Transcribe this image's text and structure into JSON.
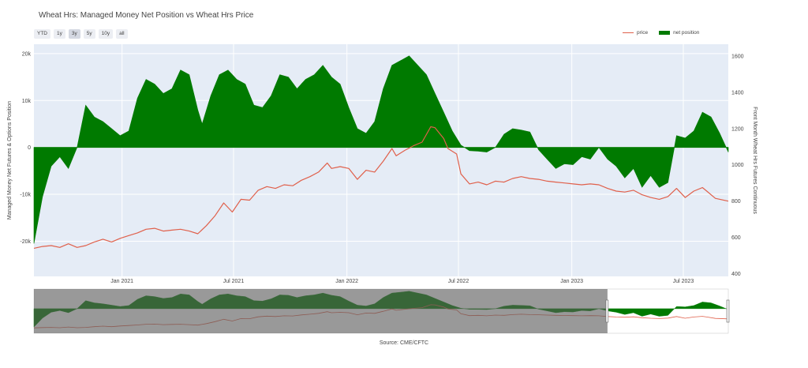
{
  "chart_title": "Wheat Hrs: Managed Money Net Position vs Wheat Hrs Price",
  "range_buttons": [
    {
      "label": "YTD",
      "active": false
    },
    {
      "label": "1y",
      "active": false
    },
    {
      "label": "3y",
      "active": true
    },
    {
      "label": "5y",
      "active": false
    },
    {
      "label": "10y",
      "active": false
    },
    {
      "label": "all",
      "active": false
    }
  ],
  "legend": {
    "price_label": "price",
    "net_label": "net position"
  },
  "source": "Source: CME/CFTC",
  "colors": {
    "price": "#e0604b",
    "net": "#007a00",
    "plot_bg": "#e5ecf6"
  },
  "chart_data": {
    "type": "line+area",
    "title": "Wheat Hrs: Managed Money Net Position vs Wheat Hrs Price",
    "xlabel": "",
    "ylabel_left": "Managed Money Net Futures & Options Position",
    "ylabel_right": "Front Month Wheat Hrs Futures Continuous",
    "xlim": [
      "2020-08-11",
      "2023-09-12"
    ],
    "ylim_left": [
      -27500,
      22000
    ],
    "ylim_right": [
      385,
      1665
    ],
    "x_ticks": [
      {
        "date": "2021-01-01",
        "label": "Jan 2021"
      },
      {
        "date": "2021-07-01",
        "label": "Jul 2021"
      },
      {
        "date": "2022-01-01",
        "label": "Jan 2022"
      },
      {
        "date": "2022-07-01",
        "label": "Jul 2022"
      },
      {
        "date": "2023-01-01",
        "label": "Jan 2023"
      },
      {
        "date": "2023-07-01",
        "label": "Jul 2023"
      }
    ],
    "y_ticks_left": [
      {
        "value": 20000,
        "label": "20k"
      },
      {
        "value": 10000,
        "label": "10k"
      },
      {
        "value": 0,
        "label": "0"
      },
      {
        "value": -10000,
        "label": "-10k"
      },
      {
        "value": -20000,
        "label": "-20k"
      }
    ],
    "y_ticks_right": [
      {
        "value": 1600,
        "label": "1600"
      },
      {
        "value": 1400,
        "label": "1400"
      },
      {
        "value": 1200,
        "label": "1200"
      },
      {
        "value": 1000,
        "label": "1000"
      },
      {
        "value": 800,
        "label": "800"
      },
      {
        "value": 600,
        "label": "600"
      },
      {
        "value": 400,
        "label": "400"
      }
    ],
    "grid": true,
    "legend_position": "top-right",
    "rangeslider": true,
    "series": [
      {
        "name": "net position",
        "type": "area",
        "axis": "left",
        "points": [
          [
            "2020-08-11",
            -20500
          ],
          [
            "2020-08-25",
            -10500
          ],
          [
            "2020-09-08",
            -4000
          ],
          [
            "2020-09-22",
            -2000
          ],
          [
            "2020-10-06",
            -4500
          ],
          [
            "2020-10-20",
            0
          ],
          [
            "2020-11-03",
            9000
          ],
          [
            "2020-11-17",
            6500
          ],
          [
            "2020-12-01",
            5500
          ],
          [
            "2020-12-15",
            4000
          ],
          [
            "2020-12-29",
            2500
          ],
          [
            "2021-01-12",
            3500
          ],
          [
            "2021-01-26",
            10500
          ],
          [
            "2021-02-09",
            14500
          ],
          [
            "2021-02-23",
            13500
          ],
          [
            "2021-03-09",
            11500
          ],
          [
            "2021-03-23",
            12500
          ],
          [
            "2021-04-06",
            16500
          ],
          [
            "2021-04-20",
            15500
          ],
          [
            "2021-05-04",
            8000
          ],
          [
            "2021-05-11",
            5000
          ],
          [
            "2021-05-25",
            11000
          ],
          [
            "2021-06-08",
            15500
          ],
          [
            "2021-06-22",
            16500
          ],
          [
            "2021-07-06",
            14500
          ],
          [
            "2021-07-20",
            13500
          ],
          [
            "2021-08-03",
            9000
          ],
          [
            "2021-08-17",
            8500
          ],
          [
            "2021-08-31",
            11000
          ],
          [
            "2021-09-14",
            15500
          ],
          [
            "2021-09-28",
            15000
          ],
          [
            "2021-10-12",
            12500
          ],
          [
            "2021-10-26",
            14500
          ],
          [
            "2021-11-09",
            15500
          ],
          [
            "2021-11-23",
            17500
          ],
          [
            "2021-12-07",
            15000
          ],
          [
            "2021-12-21",
            13500
          ],
          [
            "2022-01-04",
            8500
          ],
          [
            "2022-01-18",
            4000
          ],
          [
            "2022-02-01",
            3000
          ],
          [
            "2022-02-15",
            5500
          ],
          [
            "2022-03-01",
            12500
          ],
          [
            "2022-03-15",
            17500
          ],
          [
            "2022-03-29",
            18500
          ],
          [
            "2022-04-12",
            19500
          ],
          [
            "2022-04-26",
            17500
          ],
          [
            "2022-05-10",
            15500
          ],
          [
            "2022-05-24",
            11500
          ],
          [
            "2022-06-07",
            7500
          ],
          [
            "2022-06-21",
            3500
          ],
          [
            "2022-07-05",
            500
          ],
          [
            "2022-07-19",
            -700
          ],
          [
            "2022-08-02",
            -800
          ],
          [
            "2022-08-16",
            -1000
          ],
          [
            "2022-08-30",
            0
          ],
          [
            "2022-09-13",
            2800
          ],
          [
            "2022-09-27",
            4000
          ],
          [
            "2022-10-11",
            3700
          ],
          [
            "2022-10-25",
            3300
          ],
          [
            "2022-11-08",
            -500
          ],
          [
            "2022-11-22",
            -2500
          ],
          [
            "2022-12-06",
            -4500
          ],
          [
            "2022-12-20",
            -3500
          ],
          [
            "2023-01-03",
            -3700
          ],
          [
            "2023-01-17",
            -2000
          ],
          [
            "2023-01-31",
            -2500
          ],
          [
            "2023-02-14",
            0
          ],
          [
            "2023-02-28",
            -2500
          ],
          [
            "2023-03-14",
            -4000
          ],
          [
            "2023-03-28",
            -6500
          ],
          [
            "2023-04-11",
            -4500
          ],
          [
            "2023-04-25",
            -8500
          ],
          [
            "2023-05-09",
            -6000
          ],
          [
            "2023-05-23",
            -8500
          ],
          [
            "2023-06-06",
            -7500
          ],
          [
            "2023-06-20",
            2500
          ],
          [
            "2023-07-04",
            2000
          ],
          [
            "2023-07-18",
            3500
          ],
          [
            "2023-08-01",
            7500
          ],
          [
            "2023-08-15",
            6500
          ],
          [
            "2023-08-29",
            3000
          ],
          [
            "2023-09-12",
            -1000
          ]
        ]
      },
      {
        "name": "price",
        "type": "line",
        "axis": "right",
        "points": [
          [
            "2020-08-11",
            540
          ],
          [
            "2020-08-25",
            550
          ],
          [
            "2020-09-08",
            555
          ],
          [
            "2020-09-22",
            545
          ],
          [
            "2020-10-06",
            565
          ],
          [
            "2020-10-20",
            545
          ],
          [
            "2020-11-03",
            555
          ],
          [
            "2020-11-17",
            575
          ],
          [
            "2020-12-01",
            590
          ],
          [
            "2020-12-15",
            575
          ],
          [
            "2020-12-29",
            595
          ],
          [
            "2021-01-12",
            610
          ],
          [
            "2021-01-26",
            625
          ],
          [
            "2021-02-09",
            645
          ],
          [
            "2021-02-23",
            650
          ],
          [
            "2021-03-09",
            635
          ],
          [
            "2021-03-23",
            640
          ],
          [
            "2021-04-06",
            645
          ],
          [
            "2021-04-20",
            635
          ],
          [
            "2021-05-04",
            620
          ],
          [
            "2021-05-18",
            665
          ],
          [
            "2021-06-01",
            720
          ],
          [
            "2021-06-15",
            790
          ],
          [
            "2021-06-29",
            740
          ],
          [
            "2021-07-13",
            810
          ],
          [
            "2021-07-27",
            805
          ],
          [
            "2021-08-10",
            860
          ],
          [
            "2021-08-24",
            880
          ],
          [
            "2021-09-07",
            870
          ],
          [
            "2021-09-21",
            890
          ],
          [
            "2021-10-05",
            885
          ],
          [
            "2021-10-19",
            915
          ],
          [
            "2021-11-02",
            935
          ],
          [
            "2021-11-16",
            960
          ],
          [
            "2021-11-30",
            1010
          ],
          [
            "2021-12-07",
            980
          ],
          [
            "2021-12-21",
            990
          ],
          [
            "2022-01-04",
            980
          ],
          [
            "2022-01-18",
            920
          ],
          [
            "2022-02-01",
            970
          ],
          [
            "2022-02-15",
            960
          ],
          [
            "2022-03-01",
            1020
          ],
          [
            "2022-03-15",
            1090
          ],
          [
            "2022-03-22",
            1050
          ],
          [
            "2022-04-05",
            1080
          ],
          [
            "2022-04-19",
            1105
          ],
          [
            "2022-05-03",
            1125
          ],
          [
            "2022-05-17",
            1210
          ],
          [
            "2022-05-24",
            1205
          ],
          [
            "2022-06-07",
            1145
          ],
          [
            "2022-06-14",
            1090
          ],
          [
            "2022-06-28",
            1060
          ],
          [
            "2022-07-05",
            950
          ],
          [
            "2022-07-19",
            895
          ],
          [
            "2022-08-02",
            905
          ],
          [
            "2022-08-16",
            890
          ],
          [
            "2022-08-30",
            910
          ],
          [
            "2022-09-13",
            905
          ],
          [
            "2022-09-27",
            925
          ],
          [
            "2022-10-11",
            935
          ],
          [
            "2022-10-25",
            925
          ],
          [
            "2022-11-08",
            920
          ],
          [
            "2022-11-22",
            910
          ],
          [
            "2022-12-06",
            905
          ],
          [
            "2022-12-20",
            900
          ],
          [
            "2023-01-03",
            895
          ],
          [
            "2023-01-17",
            890
          ],
          [
            "2023-01-31",
            895
          ],
          [
            "2023-02-14",
            890
          ],
          [
            "2023-02-28",
            870
          ],
          [
            "2023-03-14",
            855
          ],
          [
            "2023-03-28",
            850
          ],
          [
            "2023-04-11",
            860
          ],
          [
            "2023-04-25",
            835
          ],
          [
            "2023-05-09",
            820
          ],
          [
            "2023-05-23",
            810
          ],
          [
            "2023-06-06",
            825
          ],
          [
            "2023-06-20",
            870
          ],
          [
            "2023-07-04",
            820
          ],
          [
            "2023-07-18",
            855
          ],
          [
            "2023-08-01",
            875
          ],
          [
            "2023-08-08",
            855
          ],
          [
            "2023-08-22",
            815
          ],
          [
            "2023-09-12",
            800
          ]
        ]
      }
    ]
  }
}
